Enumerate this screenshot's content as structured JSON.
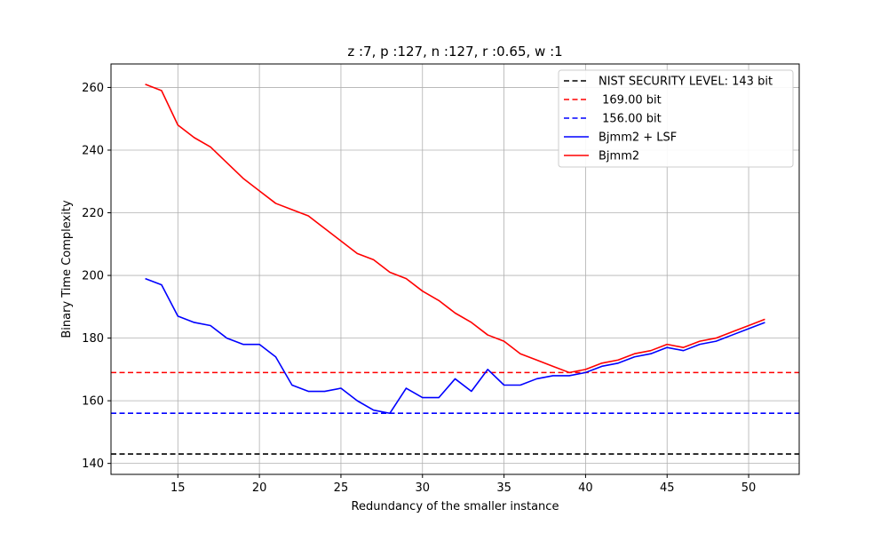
{
  "chart_data": {
    "type": "line",
    "title": "z :7, p :127, n :127, r :0.65, w :1",
    "xlabel": "Redundancy of the smaller instance",
    "ylabel": "Binary Time Complexity",
    "xlim": [
      10.9,
      53.1
    ],
    "ylim": [
      136.5,
      267.5
    ],
    "xticks": [
      15,
      20,
      25,
      30,
      35,
      40,
      45,
      50
    ],
    "yticks": [
      140,
      160,
      180,
      200,
      220,
      240,
      260
    ],
    "grid": true,
    "legend_position": "top-right",
    "hlines": [
      {
        "name": "NIST SECURITY LEVEL: 143 bit",
        "y": 143,
        "color": "#000000",
        "style": "dashed"
      },
      {
        "name": " 169.00 bit",
        "y": 169,
        "color": "#ff0000",
        "style": "dashed"
      },
      {
        "name": " 156.00 bit",
        "y": 156,
        "color": "#0000ff",
        "style": "dashed"
      }
    ],
    "series": [
      {
        "name": "Bjmm2 + LSF",
        "color": "#0000ff",
        "x": [
          13,
          14,
          15,
          16,
          17,
          18,
          19,
          20,
          21,
          22,
          23,
          24,
          25,
          26,
          27,
          28,
          29,
          30,
          31,
          32,
          33,
          34,
          35,
          36,
          37,
          38,
          39,
          40,
          41,
          42,
          43,
          44,
          45,
          46,
          47,
          48,
          49,
          50,
          51
        ],
        "values": [
          199,
          197,
          187,
          185,
          184,
          180,
          178,
          178,
          174,
          165,
          163,
          163,
          164,
          160,
          157,
          156,
          164,
          161,
          161,
          167,
          163,
          170,
          165,
          165,
          167,
          168,
          168,
          169,
          171,
          172,
          174,
          175,
          177,
          176,
          178,
          179,
          181,
          183,
          185
        ]
      },
      {
        "name": "Bjmm2",
        "color": "#ff0000",
        "x": [
          13,
          14,
          15,
          16,
          17,
          18,
          19,
          20,
          21,
          22,
          23,
          24,
          25,
          26,
          27,
          28,
          29,
          30,
          31,
          32,
          33,
          34,
          35,
          36,
          37,
          38,
          39,
          40,
          41,
          42,
          43,
          44,
          45,
          46,
          47,
          48,
          49,
          50,
          51
        ],
        "values": [
          261,
          259,
          248,
          244,
          241,
          236,
          231,
          227,
          223,
          221,
          219,
          215,
          211,
          207,
          205,
          201,
          199,
          195,
          192,
          188,
          185,
          181,
          179,
          175,
          173,
          171,
          169,
          170,
          172,
          173,
          175,
          176,
          178,
          177,
          179,
          180,
          182,
          184,
          186
        ]
      }
    ]
  }
}
